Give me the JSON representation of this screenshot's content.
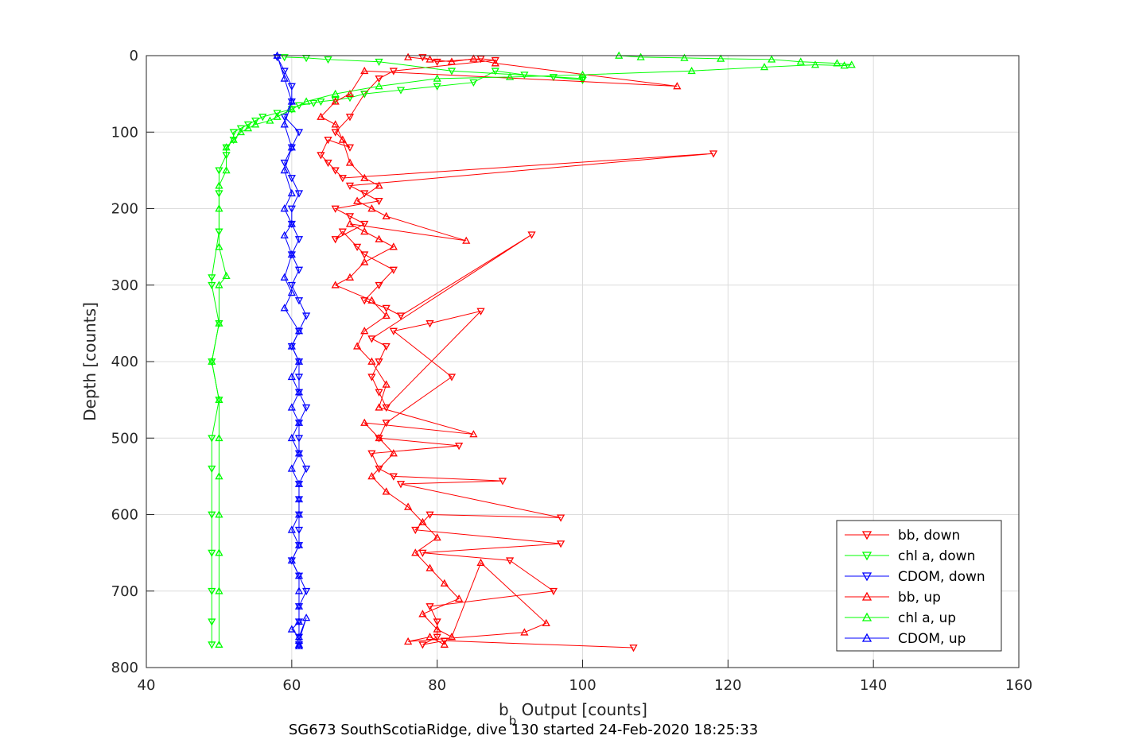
{
  "chart_data": {
    "type": "scatter",
    "title": "SG673 SouthScotiaRidge, dive 130 started 24-Feb-2020 18:25:33",
    "xlabel_main": "b",
    "xlabel_sub": "b",
    "xlabel_rest": " Output [counts]",
    "ylabel": "Depth [counts]",
    "xlim": [
      40,
      160
    ],
    "ylim": [
      0,
      800
    ],
    "y_reversed": true,
    "grid": true,
    "legend_position": "bottom-right",
    "xticks": [
      "40",
      "60",
      "80",
      "100",
      "120",
      "140",
      "160"
    ],
    "yticks": [
      "0",
      "100",
      "200",
      "300",
      "400",
      "500",
      "600",
      "700",
      "800"
    ],
    "series": [
      {
        "name": "bb, down",
        "color": "#ff0000",
        "marker": "triangle-down",
        "x": [
          78,
          80,
          86,
          88,
          74,
          72,
          70,
          68,
          66,
          68,
          65,
          64,
          65,
          66,
          67,
          118,
          68,
          70,
          72,
          66,
          68,
          70,
          66,
          67,
          69,
          70,
          74,
          72,
          70,
          73,
          75,
          93,
          71,
          73,
          72,
          71,
          72,
          73,
          86,
          79,
          74,
          82,
          73,
          72,
          83,
          71,
          72,
          74,
          89,
          75,
          97,
          79,
          77,
          97,
          78,
          90,
          96,
          79,
          80,
          80,
          78,
          81,
          107
        ],
        "y": [
          2,
          8,
          4,
          6,
          20,
          30,
          50,
          80,
          100,
          120,
          110,
          130,
          140,
          150,
          160,
          128,
          170,
          180,
          190,
          200,
          210,
          220,
          240,
          230,
          250,
          260,
          280,
          300,
          320,
          330,
          340,
          234,
          370,
          380,
          400,
          420,
          440,
          460,
          334,
          350,
          360,
          420,
          480,
          500,
          510,
          520,
          540,
          550,
          556,
          560,
          604,
          600,
          620,
          638,
          650,
          660,
          700,
          720,
          740,
          760,
          770,
          765,
          774
        ]
      },
      {
        "name": "chl a, down",
        "color": "#00ff00",
        "marker": "triangle-down",
        "x": [
          59,
          62,
          65,
          72,
          82,
          100,
          100,
          96,
          92,
          88,
          85,
          80,
          75,
          70,
          68,
          66,
          64,
          63,
          61,
          60,
          58,
          56,
          55,
          54,
          53,
          52,
          52,
          51,
          51,
          50,
          50,
          50,
          49,
          49,
          50,
          49,
          50,
          49,
          49,
          49,
          49,
          49,
          49,
          49
        ],
        "y": [
          2,
          3,
          5,
          8,
          20,
          30,
          32,
          28,
          25,
          20,
          35,
          40,
          45,
          50,
          55,
          58,
          60,
          62,
          65,
          70,
          75,
          80,
          85,
          90,
          95,
          100,
          110,
          120,
          130,
          150,
          180,
          230,
          290,
          300,
          350,
          400,
          450,
          500,
          540,
          600,
          650,
          700,
          740,
          770
        ]
      },
      {
        "name": "CDOM, down",
        "color": "#0000ff",
        "marker": "triangle-down",
        "x": [
          58,
          59,
          60,
          60,
          59,
          61,
          60,
          59,
          60,
          61,
          60,
          60,
          61,
          60,
          61,
          60,
          61,
          62,
          61,
          60,
          61,
          61,
          61,
          62,
          61,
          61,
          61,
          62,
          61,
          61,
          61,
          61,
          61,
          60,
          61,
          62,
          61,
          61,
          61,
          61
        ],
        "y": [
          2,
          20,
          40,
          60,
          80,
          100,
          120,
          140,
          160,
          180,
          200,
          220,
          240,
          260,
          280,
          300,
          320,
          340,
          360,
          380,
          400,
          420,
          440,
          460,
          480,
          500,
          520,
          540,
          560,
          580,
          600,
          620,
          640,
          660,
          680,
          700,
          720,
          740,
          760,
          770
        ]
      },
      {
        "name": "bb, up",
        "color": "#ff0000",
        "marker": "triangle-up",
        "x": [
          76,
          79,
          82,
          85,
          88,
          113,
          70,
          68,
          66,
          64,
          66,
          67,
          68,
          70,
          72,
          69,
          71,
          73,
          84,
          68,
          70,
          72,
          74,
          70,
          68,
          66,
          71,
          73,
          70,
          69,
          71,
          73,
          72,
          85,
          70,
          72,
          74,
          71,
          73,
          76,
          78,
          80,
          77,
          79,
          81,
          83,
          78,
          80,
          82,
          86,
          95,
          92,
          76,
          79,
          81
        ],
        "y": [
          2,
          5,
          8,
          4,
          10,
          40,
          20,
          50,
          60,
          80,
          90,
          110,
          140,
          160,
          170,
          190,
          200,
          210,
          242,
          220,
          230,
          240,
          250,
          270,
          290,
          300,
          320,
          340,
          360,
          380,
          400,
          430,
          460,
          495,
          480,
          500,
          520,
          550,
          570,
          590,
          610,
          630,
          650,
          670,
          690,
          710,
          730,
          750,
          760,
          663,
          742,
          754,
          766,
          760,
          770
        ]
      },
      {
        "name": "chl a, up",
        "color": "#00ff00",
        "marker": "triangle-up",
        "x": [
          105,
          108,
          114,
          119,
          126,
          130,
          135,
          137,
          136,
          132,
          125,
          115,
          100,
          90,
          80,
          72,
          66,
          62,
          60,
          58,
          57,
          55,
          54,
          53,
          52,
          51,
          51,
          50,
          50,
          50,
          51,
          50,
          50,
          49,
          50,
          50,
          50,
          50,
          50,
          50,
          50
        ],
        "y": [
          0,
          2,
          3,
          4,
          5,
          8,
          10,
          12,
          13,
          12,
          15,
          20,
          25,
          28,
          30,
          40,
          50,
          60,
          70,
          80,
          85,
          90,
          95,
          100,
          110,
          120,
          150,
          170,
          200,
          250,
          288,
          300,
          350,
          400,
          450,
          500,
          550,
          600,
          650,
          700,
          770
        ]
      },
      {
        "name": "CDOM, up",
        "color": "#0000ff",
        "marker": "triangle-up",
        "x": [
          58,
          59,
          60,
          59,
          60,
          59,
          60,
          59,
          60,
          59,
          60,
          59,
          60,
          59,
          61,
          60,
          61,
          60,
          61,
          60,
          61,
          60,
          61,
          60,
          61,
          61,
          61,
          60,
          61,
          60,
          61,
          61,
          61,
          61,
          60,
          61,
          62,
          61,
          61,
          61
        ],
        "y": [
          0,
          30,
          60,
          90,
          120,
          150,
          180,
          200,
          220,
          235,
          260,
          290,
          310,
          330,
          360,
          380,
          400,
          420,
          440,
          460,
          480,
          500,
          520,
          540,
          560,
          580,
          600,
          620,
          640,
          660,
          680,
          700,
          720,
          740,
          750,
          760,
          735,
          765,
          770,
          772
        ]
      }
    ]
  }
}
